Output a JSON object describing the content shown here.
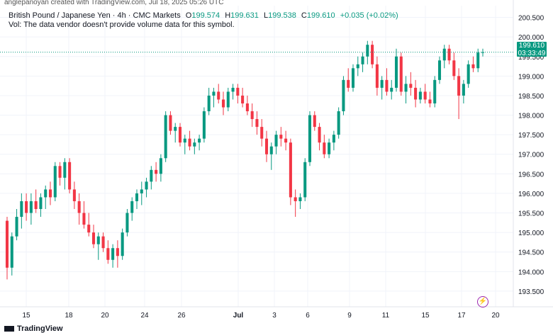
{
  "credit": "anglepanoyan created with TradingView.com, Jul 18, 2025 05:26 UTC",
  "legend": {
    "symbol": "British Pound / Japanese Yen · 4h · CMC Markets",
    "open_label": "O",
    "open": "199.574",
    "high_label": "H",
    "high": "199.631",
    "low_label": "L",
    "low": "199.538",
    "close_label": "C",
    "close": "199.610",
    "change": "+0.035 (+0.02%)"
  },
  "volume_note": "Vol: The data vendor doesn't provide volume data for this symbol.",
  "last_price": {
    "value": "199.610",
    "countdown": "03:33:49"
  },
  "logo_text": "TradingView",
  "colors": {
    "up": "#089981",
    "down": "#f23645",
    "grid": "#f0f3fa",
    "axis_text": "#131722"
  },
  "icons": {
    "logo": "tradingview-logo-icon",
    "alert": "lightning-bolt-icon"
  },
  "chart_data": {
    "type": "candlestick",
    "ylim": [
      193.1,
      200.8
    ],
    "yticks": [
      "193.500",
      "194.000",
      "194.500",
      "195.000",
      "195.500",
      "196.000",
      "196.500",
      "197.000",
      "197.500",
      "198.000",
      "198.500",
      "199.000",
      "199.500",
      "200.000",
      "200.500"
    ],
    "xticks": [
      "15",
      "18",
      "20",
      "24",
      "26",
      "Jul",
      "3",
      "6",
      "9",
      "11",
      "15",
      "17",
      "20"
    ],
    "candles": [
      [
        195.3,
        195.4,
        193.8,
        194.1
      ],
      [
        194.1,
        195.0,
        193.9,
        194.9
      ],
      [
        194.9,
        195.6,
        194.8,
        195.4
      ],
      [
        195.4,
        196.0,
        195.1,
        195.8
      ],
      [
        195.8,
        196.0,
        195.3,
        195.5
      ],
      [
        195.5,
        196.0,
        195.2,
        195.8
      ],
      [
        195.8,
        196.1,
        195.5,
        195.6
      ],
      [
        195.6,
        196.0,
        195.4,
        195.9
      ],
      [
        195.9,
        196.2,
        195.6,
        196.1
      ],
      [
        196.1,
        196.3,
        195.7,
        195.9
      ],
      [
        195.9,
        196.8,
        195.8,
        196.7
      ],
      [
        196.7,
        196.8,
        196.2,
        196.4
      ],
      [
        196.4,
        196.9,
        196.1,
        196.8
      ],
      [
        196.8,
        196.9,
        196.0,
        196.1
      ],
      [
        196.1,
        196.3,
        195.6,
        195.8
      ],
      [
        195.8,
        196.0,
        195.2,
        195.5
      ],
      [
        195.5,
        195.8,
        195.1,
        195.2
      ],
      [
        195.2,
        195.5,
        194.9,
        195.0
      ],
      [
        195.0,
        195.2,
        194.6,
        194.7
      ],
      [
        194.7,
        195.0,
        194.3,
        194.9
      ],
      [
        194.9,
        195.0,
        194.5,
        194.6
      ],
      [
        194.6,
        194.8,
        194.2,
        194.3
      ],
      [
        194.3,
        194.7,
        194.1,
        194.6
      ],
      [
        194.6,
        194.8,
        194.1,
        194.4
      ],
      [
        194.4,
        195.1,
        194.3,
        195.0
      ],
      [
        195.0,
        195.6,
        194.9,
        195.5
      ],
      [
        195.5,
        195.9,
        195.3,
        195.8
      ],
      [
        195.8,
        196.1,
        195.6,
        196.0
      ],
      [
        196.0,
        196.3,
        195.7,
        196.1
      ],
      [
        196.1,
        196.4,
        195.9,
        196.3
      ],
      [
        196.3,
        196.7,
        196.1,
        196.6
      ],
      [
        196.6,
        196.8,
        196.3,
        196.5
      ],
      [
        196.5,
        197.0,
        196.3,
        196.9
      ],
      [
        196.9,
        198.1,
        196.8,
        198.0
      ],
      [
        198.0,
        198.1,
        197.5,
        197.6
      ],
      [
        197.6,
        197.8,
        197.3,
        197.7
      ],
      [
        197.7,
        197.8,
        197.2,
        197.3
      ],
      [
        197.3,
        197.5,
        197.0,
        197.4
      ],
      [
        197.4,
        197.6,
        197.1,
        197.2
      ],
      [
        197.2,
        197.4,
        197.0,
        197.3
      ],
      [
        197.3,
        197.5,
        197.1,
        197.4
      ],
      [
        197.4,
        198.2,
        197.3,
        198.1
      ],
      [
        198.1,
        198.7,
        198.0,
        198.5
      ],
      [
        198.5,
        198.7,
        198.2,
        198.6
      ],
      [
        198.6,
        198.8,
        198.3,
        198.4
      ],
      [
        198.4,
        198.6,
        198.0,
        198.2
      ],
      [
        198.2,
        198.7,
        198.1,
        198.6
      ],
      [
        198.6,
        198.8,
        198.4,
        198.7
      ],
      [
        198.7,
        198.8,
        198.3,
        198.5
      ],
      [
        198.5,
        198.7,
        198.2,
        198.3
      ],
      [
        198.3,
        198.5,
        198.0,
        198.1
      ],
      [
        198.1,
        198.3,
        197.7,
        197.9
      ],
      [
        197.9,
        198.1,
        197.5,
        197.7
      ],
      [
        197.7,
        197.9,
        197.2,
        197.4
      ],
      [
        197.4,
        197.6,
        196.8,
        197.0
      ],
      [
        197.0,
        197.3,
        196.6,
        197.2
      ],
      [
        197.2,
        197.6,
        197.0,
        197.5
      ],
      [
        197.5,
        197.7,
        197.2,
        197.4
      ],
      [
        197.4,
        197.6,
        197.1,
        197.3
      ],
      [
        197.3,
        197.4,
        195.7,
        195.9
      ],
      [
        195.9,
        196.1,
        195.4,
        195.8
      ],
      [
        195.8,
        196.0,
        195.6,
        195.9
      ],
      [
        195.9,
        196.9,
        195.8,
        196.8
      ],
      [
        196.8,
        198.1,
        196.7,
        198.0
      ],
      [
        198.0,
        198.1,
        197.6,
        197.7
      ],
      [
        197.7,
        197.8,
        197.1,
        197.3
      ],
      [
        197.3,
        197.5,
        196.9,
        197.0
      ],
      [
        197.0,
        197.4,
        196.9,
        197.3
      ],
      [
        197.3,
        197.6,
        197.1,
        197.5
      ],
      [
        197.5,
        198.2,
        197.4,
        198.1
      ],
      [
        198.1,
        199.0,
        198.0,
        198.9
      ],
      [
        198.9,
        199.2,
        198.6,
        198.7
      ],
      [
        198.7,
        199.3,
        198.6,
        199.2
      ],
      [
        199.2,
        199.5,
        199.0,
        199.3
      ],
      [
        199.3,
        199.6,
        199.1,
        199.5
      ],
      [
        199.5,
        199.9,
        199.3,
        199.8
      ],
      [
        199.8,
        199.9,
        199.2,
        199.3
      ],
      [
        199.3,
        199.5,
        198.5,
        198.7
      ],
      [
        198.7,
        199.0,
        198.4,
        198.9
      ],
      [
        198.9,
        199.2,
        198.5,
        198.6
      ],
      [
        198.6,
        198.9,
        198.4,
        198.7
      ],
      [
        198.7,
        199.7,
        198.6,
        199.5
      ],
      [
        199.5,
        199.6,
        198.5,
        198.6
      ],
      [
        198.6,
        199.0,
        198.3,
        198.8
      ],
      [
        198.8,
        199.1,
        198.5,
        198.7
      ],
      [
        198.7,
        198.9,
        198.2,
        198.4
      ],
      [
        198.4,
        198.7,
        198.3,
        198.6
      ],
      [
        198.6,
        198.8,
        198.3,
        198.4
      ],
      [
        198.4,
        198.6,
        198.2,
        198.3
      ],
      [
        198.3,
        199.0,
        198.2,
        198.9
      ],
      [
        198.9,
        199.5,
        198.8,
        199.4
      ],
      [
        199.4,
        199.8,
        199.2,
        199.7
      ],
      [
        199.7,
        199.8,
        199.3,
        199.4
      ],
      [
        199.4,
        199.6,
        198.9,
        199.0
      ],
      [
        199.0,
        199.2,
        197.9,
        198.5
      ],
      [
        198.5,
        198.9,
        198.3,
        198.8
      ],
      [
        198.8,
        199.4,
        198.7,
        199.3
      ],
      [
        199.3,
        199.5,
        199.1,
        199.2
      ],
      [
        199.2,
        199.7,
        199.1,
        199.6
      ],
      [
        199.6,
        199.7,
        199.5,
        199.61
      ]
    ]
  }
}
